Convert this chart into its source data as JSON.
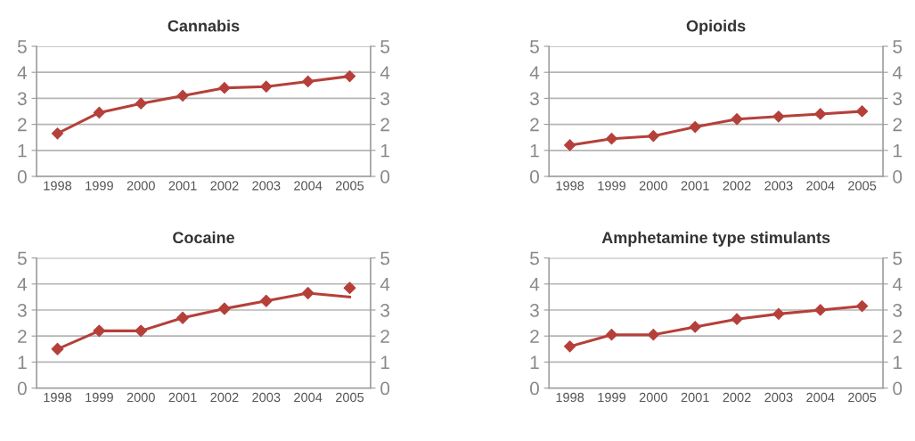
{
  "chart_data": [
    {
      "type": "line",
      "title": "Cannabis",
      "categories": [
        "1998",
        "1999",
        "2000",
        "2001",
        "2002",
        "2003",
        "2004",
        "2005"
      ],
      "ylim": [
        0,
        5
      ],
      "yticks": [
        0,
        1,
        2,
        3,
        4,
        5
      ],
      "y2lim": [
        0,
        5
      ],
      "y2ticks": [
        0,
        1,
        2,
        3,
        4,
        5
      ],
      "grid": "y",
      "series": [
        {
          "color": "#b5403a",
          "marker": "diamond",
          "values": [
            1.65,
            2.45,
            2.8,
            3.1,
            3.4,
            3.45,
            3.65,
            3.85
          ]
        }
      ]
    },
    {
      "type": "line",
      "title": "Opioids",
      "categories": [
        "1998",
        "1999",
        "2000",
        "2001",
        "2002",
        "2003",
        "2004",
        "2005"
      ],
      "ylim": [
        0,
        5
      ],
      "yticks": [
        0,
        1,
        2,
        3,
        4,
        5
      ],
      "y2lim": [
        0,
        5
      ],
      "y2ticks": [
        0,
        1,
        2,
        3,
        4,
        5
      ],
      "grid": "y",
      "series": [
        {
          "color": "#b5403a",
          "marker": "diamond",
          "values": [
            1.2,
            1.45,
            1.55,
            1.9,
            2.2,
            2.3,
            2.4,
            2.5
          ]
        }
      ]
    },
    {
      "type": "line",
      "title": "Cocaine",
      "categories": [
        "1998",
        "1999",
        "2000",
        "2001",
        "2002",
        "2003",
        "2004",
        "2005"
      ],
      "ylim": [
        0,
        5
      ],
      "yticks": [
        0,
        1,
        2,
        3,
        4,
        5
      ],
      "y2lim": [
        0,
        5
      ],
      "y2ticks": [
        0,
        1,
        2,
        3,
        4,
        5
      ],
      "grid": "y",
      "series": [
        {
          "color": "#b5403a",
          "marker": "none",
          "values": [
            1.5,
            2.2,
            2.2,
            2.7,
            3.05,
            3.35,
            3.65,
            3.5
          ]
        },
        {
          "type": "scatter",
          "color": "#b5403a",
          "marker": "diamond",
          "values": [
            1.5,
            2.2,
            2.2,
            2.7,
            3.05,
            3.35,
            3.65,
            3.85
          ]
        }
      ]
    },
    {
      "type": "line",
      "title": "Amphetamine type stimulants",
      "categories": [
        "1998",
        "1999",
        "2000",
        "2001",
        "2002",
        "2003",
        "2004",
        "2005"
      ],
      "ylim": [
        0,
        5
      ],
      "yticks": [
        0,
        1,
        2,
        3,
        4,
        5
      ],
      "y2lim": [
        0,
        5
      ],
      "y2ticks": [
        0,
        1,
        2,
        3,
        4,
        5
      ],
      "grid": "y",
      "series": [
        {
          "color": "#b5403a",
          "marker": "diamond",
          "values": [
            1.6,
            2.05,
            2.05,
            2.35,
            2.65,
            2.85,
            3.0,
            3.15
          ]
        }
      ]
    }
  ]
}
